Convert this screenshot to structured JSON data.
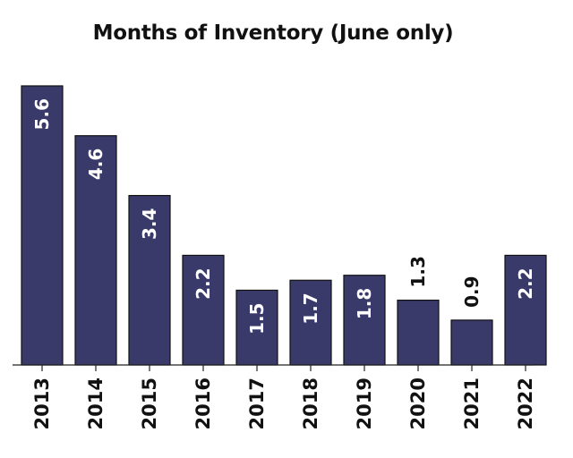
{
  "chart_data": {
    "type": "bar",
    "title": "Months of Inventory (June only)",
    "xlabel": "",
    "ylabel": "",
    "categories": [
      "2013",
      "2014",
      "2015",
      "2016",
      "2017",
      "2018",
      "2019",
      "2020",
      "2021",
      "2022"
    ],
    "values": [
      5.6,
      4.6,
      3.4,
      2.2,
      1.5,
      1.7,
      1.8,
      1.3,
      0.9,
      2.2
    ],
    "value_labels": [
      "5.6",
      "4.6",
      "3.4",
      "2.2",
      "1.5",
      "1.7",
      "1.8",
      "1.3",
      "0.9",
      "2.2"
    ],
    "ylim": [
      0,
      5.6
    ],
    "grid": false,
    "legend": "none",
    "data_labels": "rotated, inside bar top (white) or above bar when bar is short (black)",
    "colors": {
      "bar": "#3a3a6a",
      "label_inside": "#ffffff",
      "label_outside": "#111111"
    }
  }
}
